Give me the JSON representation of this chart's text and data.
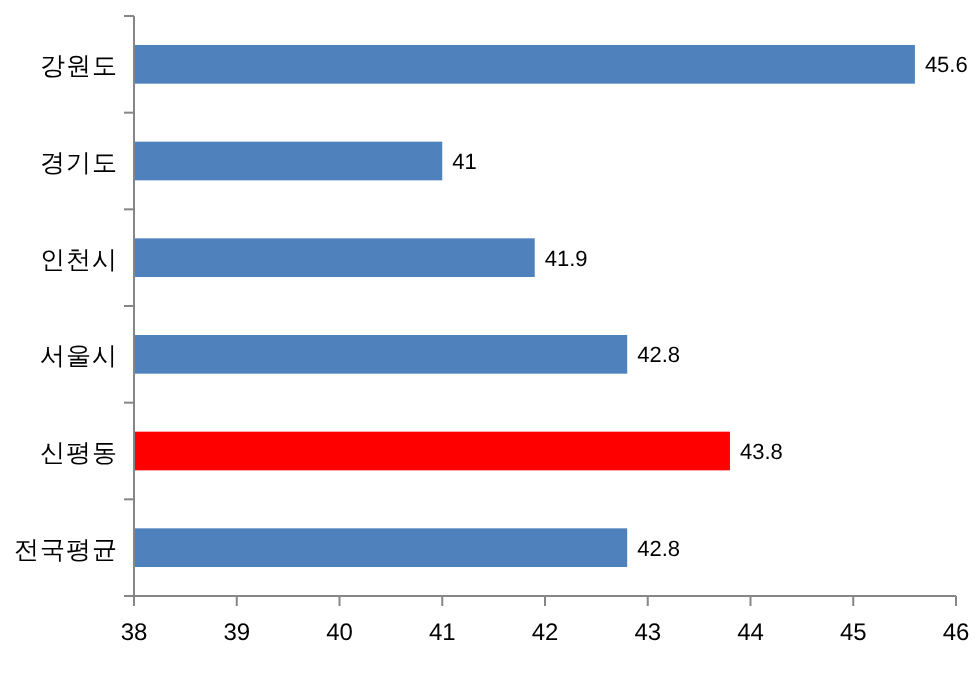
{
  "chart_data": {
    "type": "bar",
    "orientation": "horizontal",
    "categories": [
      "강원도",
      "경기도",
      "인천시",
      "서울시",
      "신평동",
      "전국평균"
    ],
    "values": [
      45.6,
      41,
      41.9,
      42.8,
      43.8,
      42.8
    ],
    "colors": [
      "#4f81bd",
      "#4f81bd",
      "#4f81bd",
      "#4f81bd",
      "#ff0000",
      "#4f81bd"
    ],
    "xlim": [
      38,
      46
    ],
    "xticks": [
      38,
      39,
      40,
      41,
      42,
      43,
      44,
      45,
      46
    ],
    "data_labels": true,
    "grid": false
  }
}
